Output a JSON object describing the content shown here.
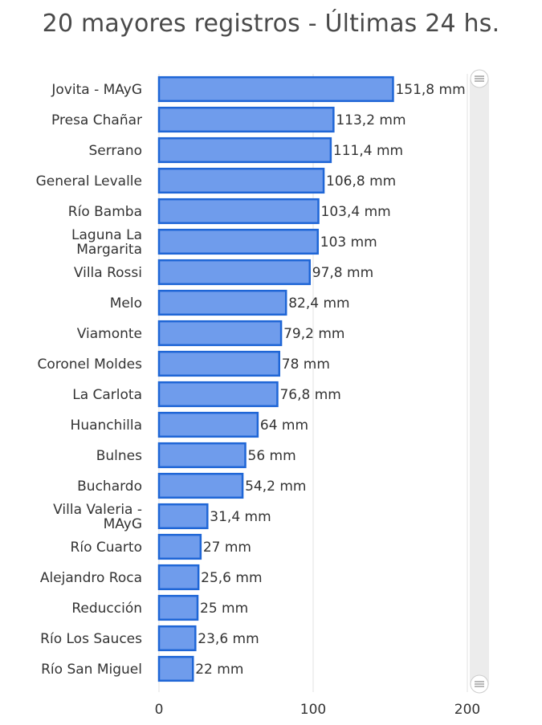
{
  "title": "20 mayores registros - Últimas 24 hs.",
  "colors": {
    "bar_fill": "#6f9cec",
    "bar_stroke": "#1f66d6",
    "grid": "#e0e0e0",
    "scrollbar_track": "#ececec"
  },
  "chart_data": {
    "type": "bar",
    "orientation": "horizontal",
    "title": "20 mayores registros - Últimas 24 hs.",
    "xlim": [
      0,
      200
    ],
    "x_ticks": [
      0,
      100,
      200
    ],
    "grid": true,
    "unit_suffix": " mm",
    "categories": [
      "Jovita - MAyG",
      "Presa Chañar",
      "Serrano",
      "General Levalle",
      "Río Bamba",
      "Laguna La Margarita",
      "Villa Rossi",
      "Melo",
      "Viamonte",
      "Coronel Moldes",
      "La Carlota",
      "Huanchilla",
      "Bulnes",
      "Buchardo",
      "Villa Valeria - MAyG",
      "Río Cuarto",
      "Alejandro Roca",
      "Reducción",
      "Río Los Sauces",
      "Río San Miguel"
    ],
    "values": [
      151.8,
      113.2,
      111.4,
      106.8,
      103.4,
      103,
      97.8,
      82.4,
      79.2,
      78,
      76.8,
      64,
      56,
      54.2,
      31.4,
      27,
      25.6,
      25,
      23.6,
      22
    ],
    "data_labels": [
      "151,8 mm",
      "113,2 mm",
      "111,4 mm",
      "106,8 mm",
      "103,4 mm",
      "103 mm",
      "97,8 mm",
      "82,4 mm",
      "79,2 mm",
      "78 mm",
      "76,8 mm",
      "64 mm",
      "56 mm",
      "54,2 mm",
      "31,4 mm",
      "27 mm",
      "25,6 mm",
      "25 mm",
      "23,6 mm",
      "22 mm"
    ]
  }
}
